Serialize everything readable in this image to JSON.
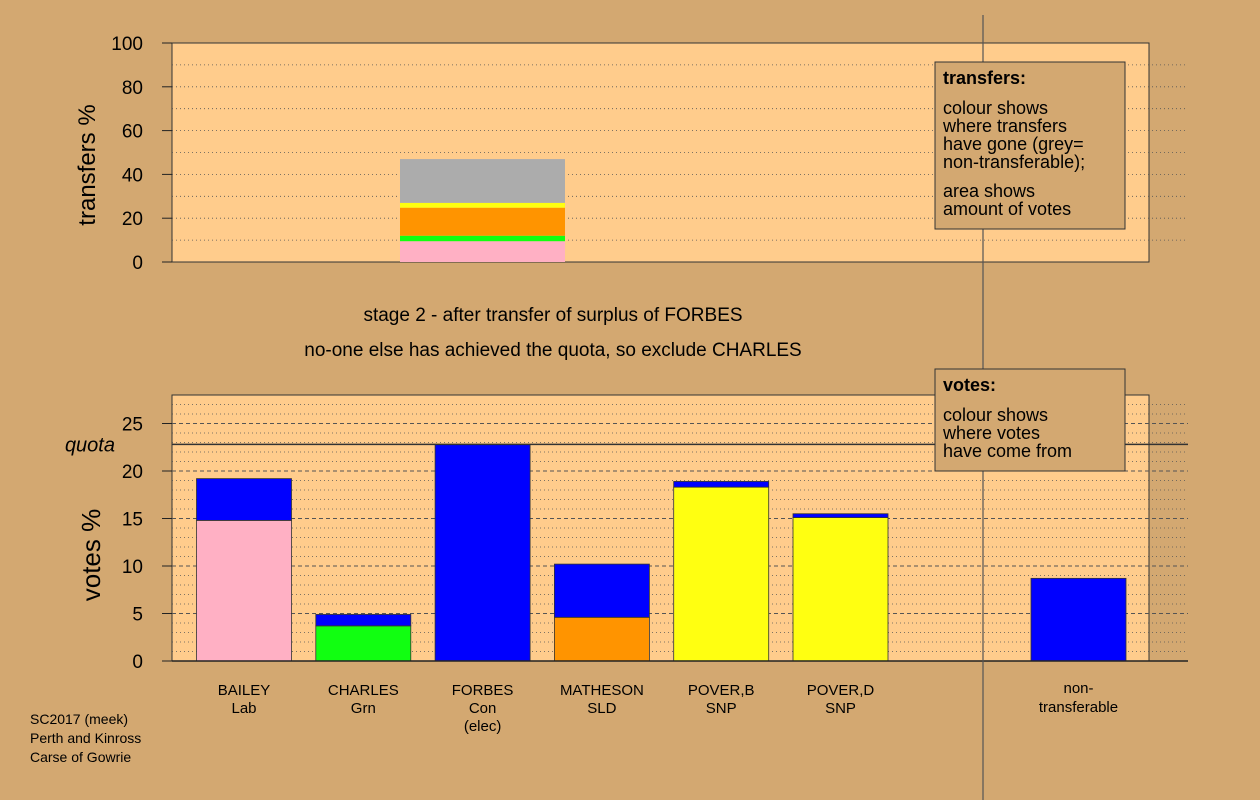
{
  "colors": {
    "background": "#d3a871",
    "panel": "#ffcc8c",
    "Con": "#0000ff",
    "Lab": "#ffb0c4",
    "Grn": "#11ff11",
    "SLD": "#ff9400",
    "SNP": "#ffff11",
    "nontransferable": "#acacac"
  },
  "chart_data": [
    {
      "type": "bar",
      "subtype": "stacked",
      "name": "transfers",
      "ylabel": "transfers %",
      "ylim": [
        0,
        100
      ],
      "yticks": [
        "0",
        "20",
        "40",
        "60",
        "80",
        "100"
      ],
      "grid": true,
      "bar": {
        "from": "FORBES",
        "segments": [
          {
            "party": "Lab",
            "value": 9.5
          },
          {
            "party": "Grn",
            "value": 2.5
          },
          {
            "party": "SLD",
            "value": 12.8
          },
          {
            "party": "SNP",
            "value": 2.2
          },
          {
            "party": "nontransferable",
            "value": 20.0
          }
        ]
      },
      "legend": {
        "title": "transfers:",
        "lines": [
          "colour shows",
          "where transfers",
          "have gone (grey=",
          "non-transferable);",
          "area shows",
          "amount of votes"
        ]
      }
    },
    {
      "type": "bar",
      "subtype": "stacked",
      "name": "votes",
      "ylabel": "votes %",
      "ylim": [
        0,
        28
      ],
      "yticks": [
        "0",
        "5",
        "10",
        "15",
        "20",
        "25"
      ],
      "quota": 22.8,
      "quota_label": "quota",
      "grid": true,
      "candidates": [
        {
          "name": "BAILEY",
          "party": "Lab",
          "segments": [
            {
              "party": "Lab",
              "value": 14.8
            },
            {
              "party": "Con",
              "value": 4.4
            }
          ]
        },
        {
          "name": "CHARLES",
          "party": "Grn",
          "segments": [
            {
              "party": "Grn",
              "value": 3.7
            },
            {
              "party": "Con",
              "value": 1.2
            }
          ]
        },
        {
          "name": "FORBES",
          "party": "Con",
          "note": "(elec)",
          "segments": [
            {
              "party": "Con",
              "value": 22.8
            }
          ]
        },
        {
          "name": "MATHESON",
          "party": "SLD",
          "segments": [
            {
              "party": "SLD",
              "value": 4.6
            },
            {
              "party": "Con",
              "value": 5.6
            }
          ]
        },
        {
          "name": "POVER,B",
          "party": "SNP",
          "segments": [
            {
              "party": "SNP",
              "value": 18.3
            },
            {
              "party": "Con",
              "value": 0.6
            }
          ]
        },
        {
          "name": "POVER,D",
          "party": "SNP",
          "segments": [
            {
              "party": "SNP",
              "value": 15.1
            },
            {
              "party": "Con",
              "value": 0.4
            }
          ]
        }
      ],
      "nontransferable": {
        "label_line1": "non-",
        "label_line2": "transferable",
        "segments": [
          {
            "party": "Con",
            "value": 8.7
          }
        ]
      },
      "legend": {
        "title": "votes:",
        "lines": [
          "colour shows",
          "where votes",
          "have come from"
        ]
      }
    }
  ],
  "stage_text": {
    "line1": "stage 2 - after transfer of surplus of FORBES",
    "line2": "no-one else has achieved the quota, so exclude CHARLES"
  },
  "footer": [
    "SC2017 (meek)",
    "Perth and Kinross",
    "Carse of Gowrie"
  ]
}
